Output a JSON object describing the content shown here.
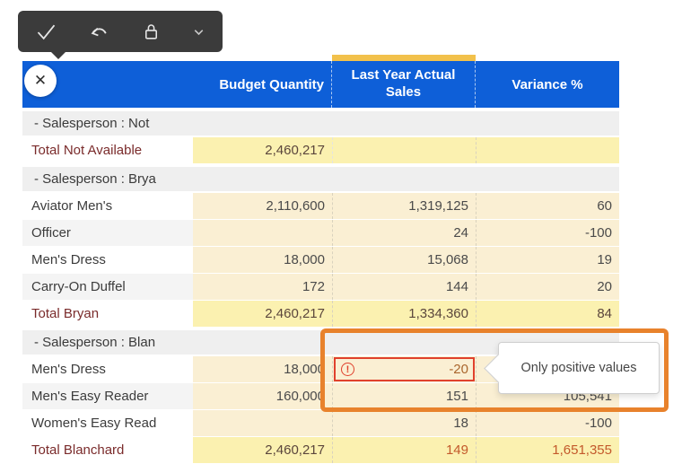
{
  "toolbar": {
    "icons": [
      {
        "name": "confirm-check-icon"
      },
      {
        "name": "undo-icon"
      },
      {
        "name": "lock-icon"
      },
      {
        "name": "chevron-down-icon"
      }
    ]
  },
  "close_button": {
    "glyph": "✕"
  },
  "table": {
    "columns": [
      "Budget Quantity",
      "Last Year Actual Sales",
      "Variance %"
    ],
    "selected_column": "Last Year Actual Sales",
    "rows": [
      {
        "type": "group",
        "label": "-  Salesperson : Not"
      },
      {
        "type": "total",
        "label": "Total Not Available",
        "budget": "2,460,217",
        "sales": "",
        "variance": "",
        "sales_white": true
      },
      {
        "type": "group",
        "label": "-  Salesperson : Brya"
      },
      {
        "type": "data",
        "label": "Aviator Men's",
        "budget": "2,110,600",
        "sales": "1,319,125",
        "variance": "60",
        "alt": false
      },
      {
        "type": "data",
        "label": "Officer",
        "budget": "",
        "sales": "24",
        "variance": "-100",
        "alt": true
      },
      {
        "type": "data",
        "label": "Men's Dress",
        "budget": "18,000",
        "sales": "15,068",
        "variance": "19",
        "alt": false
      },
      {
        "type": "data",
        "label": "Carry-On Duffel",
        "budget": "172",
        "sales": "144",
        "variance": "20",
        "alt": true
      },
      {
        "type": "total",
        "label": "Total Bryan",
        "budget": "2,460,217",
        "sales": "1,334,360",
        "variance": "84"
      },
      {
        "type": "group",
        "label": "-  Salesperson : Blan"
      },
      {
        "type": "data",
        "label": "Men's Dress",
        "budget": "18,000",
        "sales": "-20",
        "variance": "",
        "alt": false,
        "error": true
      },
      {
        "type": "data",
        "label": "Men's Easy Reader",
        "budget": "160,000",
        "sales": "151",
        "variance": "105,541",
        "alt": true
      },
      {
        "type": "data",
        "label": "Women's Easy Read",
        "budget": "",
        "sales": "18",
        "variance": "-100",
        "alt": false
      },
      {
        "type": "total",
        "label": "Total Blanchard",
        "budget": "2,460,217",
        "sales": "149",
        "variance": "1,651,355",
        "accent": true
      }
    ]
  },
  "error": {
    "icon": "!",
    "message": "Only positive values"
  },
  "tooltip": {
    "text": "Only positive values"
  },
  "colors": {
    "header_blue": "#0E5FD8",
    "selected_column_gold": "#F2C14B",
    "cell_yellow": "#FAEFD3",
    "total_yellow": "#FBF1B0",
    "group_gray": "#EFEFEF",
    "total_text_maroon": "#7A2B2B",
    "accent_orange": "#C3592B",
    "error_red": "#E0412D",
    "callout_orange": "#E8822C",
    "toolbar_dark": "#3b3b3b"
  }
}
